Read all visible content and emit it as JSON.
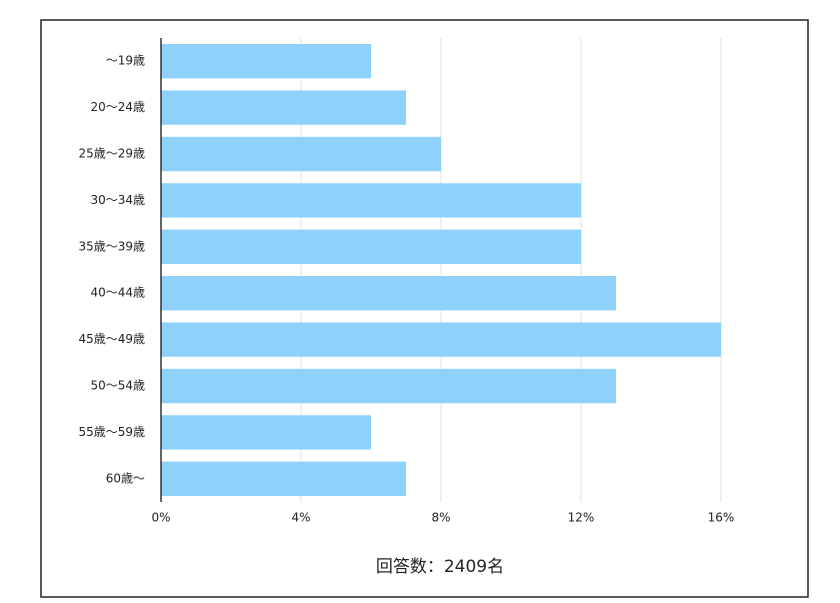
{
  "chart_data": {
    "type": "hbar",
    "title": "回答数：2409名",
    "categories": [
      "～19歳",
      "20～24歳",
      "25歳～29歳",
      "30～34歳",
      "35歳～39歳",
      "40～44歳",
      "45歳～49歳",
      "50～54歳",
      "55歳～59歳",
      "60歳～"
    ],
    "values": [
      6,
      7,
      8,
      12,
      12,
      13,
      16,
      13,
      6,
      7
    ],
    "color": "#8ed1fa",
    "xlim": [
      0,
      16
    ],
    "xticks": [
      {
        "value": 0,
        "label": "0%"
      },
      {
        "value": 4,
        "label": "4%"
      },
      {
        "value": 8,
        "label": "8%"
      },
      {
        "value": 12,
        "label": "12%"
      },
      {
        "value": 16,
        "label": "16%"
      }
    ],
    "grid": true
  }
}
